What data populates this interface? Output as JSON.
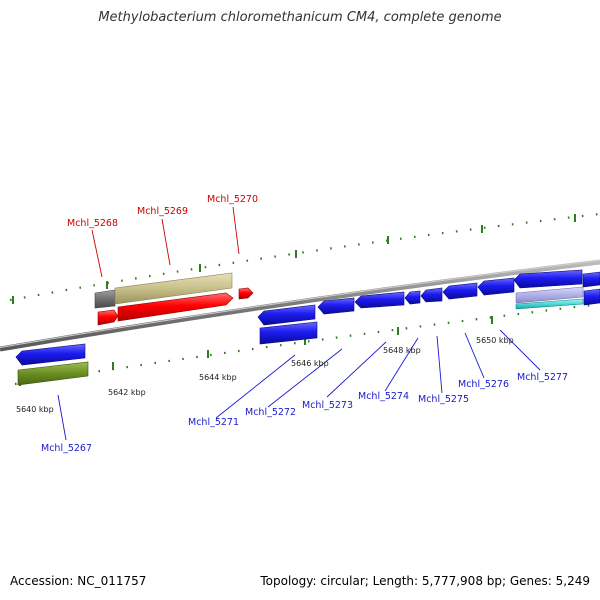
{
  "title": "Methylobacterium chloromethanicum CM4, complete genome",
  "footer": {
    "accession": "Accession: NC_011757",
    "summary": "Topology: circular; Length: 5,777,908 bp; Genes: 5,249"
  },
  "colors": {
    "axis": "#888888",
    "tick": "#2e7d1e",
    "gene_blue": "#1c1cf0",
    "gene_red": "#ff0000",
    "gene_khaki": "#c8c08a",
    "gene_gray": "#707070",
    "gene_olive": "#6b8e23",
    "label_red": "#cc0000",
    "label_blue": "#1a1acc"
  },
  "coordinates": [
    "5640 kbp",
    "5642 kbp",
    "5644 kbp",
    "5646 kbp",
    "5648 kbp",
    "5650 kbp"
  ],
  "top_labels": [
    "Mchl_5268",
    "Mchl_5269",
    "Mchl_5270"
  ],
  "bottom_labels": [
    "Mchl_5267",
    "Mchl_5271",
    "Mchl_5272",
    "Mchl_5273",
    "Mchl_5274",
    "Mchl_5275",
    "Mchl_5276",
    "Mchl_5277"
  ]
}
